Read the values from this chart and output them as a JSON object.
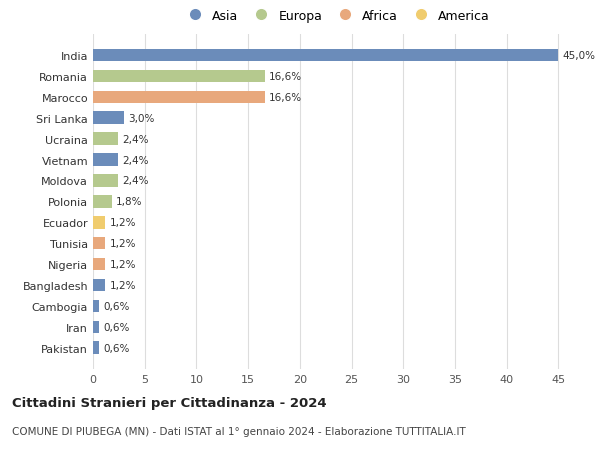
{
  "countries": [
    "India",
    "Romania",
    "Marocco",
    "Sri Lanka",
    "Ucraina",
    "Vietnam",
    "Moldova",
    "Polonia",
    "Ecuador",
    "Tunisia",
    "Nigeria",
    "Bangladesh",
    "Cambogia",
    "Iran",
    "Pakistan"
  ],
  "values": [
    45.0,
    16.6,
    16.6,
    3.0,
    2.4,
    2.4,
    2.4,
    1.8,
    1.2,
    1.2,
    1.2,
    1.2,
    0.6,
    0.6,
    0.6
  ],
  "labels": [
    "45,0%",
    "16,6%",
    "16,6%",
    "3,0%",
    "2,4%",
    "2,4%",
    "2,4%",
    "1,8%",
    "1,2%",
    "1,2%",
    "1,2%",
    "1,2%",
    "0,6%",
    "0,6%",
    "0,6%"
  ],
  "continents": [
    "Asia",
    "Europa",
    "Africa",
    "Asia",
    "Europa",
    "Asia",
    "Europa",
    "Europa",
    "America",
    "Africa",
    "Africa",
    "Asia",
    "Asia",
    "Asia",
    "Asia"
  ],
  "colors": {
    "Asia": "#6b8cba",
    "Europa": "#b5c98e",
    "Africa": "#e8a87c",
    "America": "#f0cc6e"
  },
  "legend_order": [
    "Asia",
    "Europa",
    "Africa",
    "America"
  ],
  "title": "Cittadini Stranieri per Cittadinanza - 2024",
  "subtitle": "COMUNE DI PIUBEGA (MN) - Dati ISTAT al 1° gennaio 2024 - Elaborazione TUTTITALIA.IT",
  "xlim": [
    0,
    47
  ],
  "xticks": [
    0,
    5,
    10,
    15,
    20,
    25,
    30,
    35,
    40,
    45
  ],
  "bg_color": "#ffffff",
  "grid_color": "#dddddd",
  "bar_height": 0.6
}
